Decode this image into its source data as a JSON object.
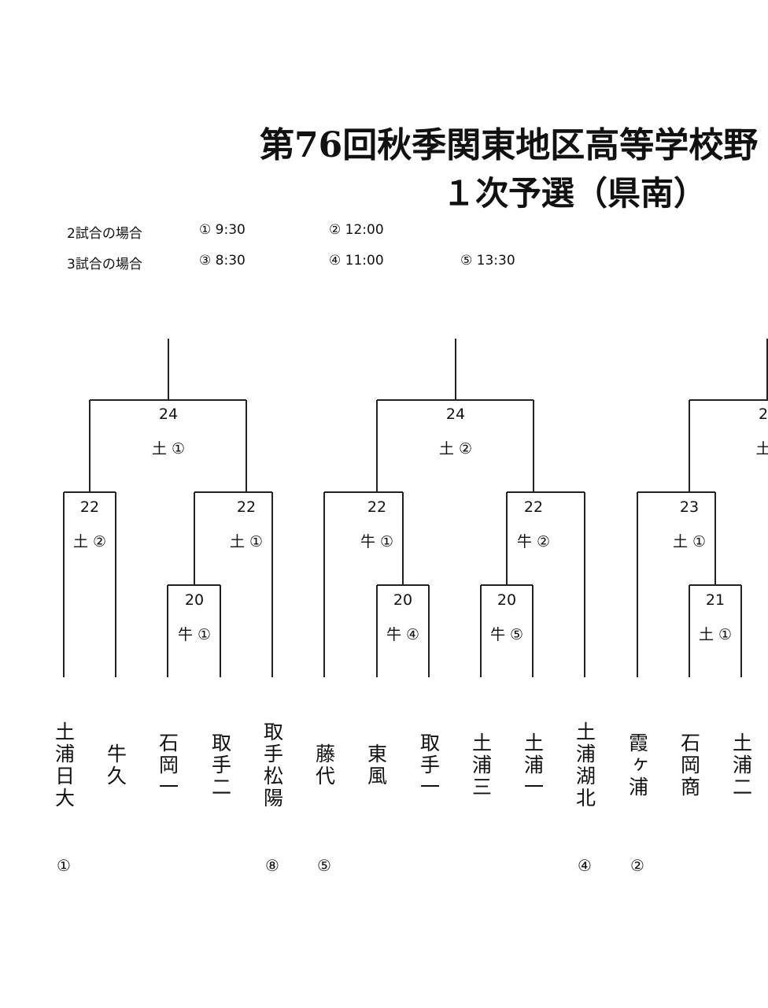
{
  "header": {
    "title": "第76回秋季関東地区高等学校野",
    "subtitle": "１次予選（県南）"
  },
  "schedule": [
    {
      "label": "2試合の場合",
      "slots": [
        "① 9:30",
        "② 12:00"
      ]
    },
    {
      "label": "3試合の場合",
      "slots": [
        "③ 8:30",
        "④ 11:00",
        "⑤ 13:30"
      ]
    }
  ],
  "matches": [
    {
      "day": 24,
      "venue": "土 ①"
    },
    {
      "day": 24,
      "venue": "土 ②"
    },
    {
      "day": 2,
      "venue": "土"
    },
    {
      "day": 22,
      "venue": "土 ②"
    },
    {
      "day": 22,
      "venue": "土 ①"
    },
    {
      "day": 22,
      "venue": "牛 ①"
    },
    {
      "day": 22,
      "venue": "牛 ②"
    },
    {
      "day": 23,
      "venue": "土 ①"
    },
    {
      "day": 20,
      "venue": "牛 ①"
    },
    {
      "day": 20,
      "venue": "牛 ④"
    },
    {
      "day": 20,
      "venue": "牛 ⑤"
    },
    {
      "day": 21,
      "venue": "土 ①"
    }
  ],
  "teams": [
    {
      "name": "土浦日大",
      "seed": "①"
    },
    {
      "name": "牛久"
    },
    {
      "name": "石岡一"
    },
    {
      "name": "取手二"
    },
    {
      "name": "取手松陽",
      "seed": "⑧"
    },
    {
      "name": "藤代",
      "seed": "⑤"
    },
    {
      "name": "東風"
    },
    {
      "name": "取手一"
    },
    {
      "name": "土浦三"
    },
    {
      "name": "土浦一"
    },
    {
      "name": "土浦湖北",
      "seed": "④"
    },
    {
      "name": "霞ヶ浦",
      "seed": "②"
    },
    {
      "name": "石岡商"
    },
    {
      "name": "土浦二"
    }
  ]
}
